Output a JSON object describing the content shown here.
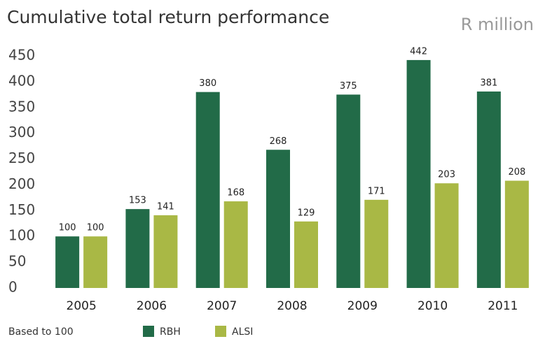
{
  "chart_data": {
    "type": "bar",
    "title": "Cumulative total return performance",
    "subtitle": "R million",
    "note": "Based to 100",
    "categories": [
      "2005",
      "2006",
      "2007",
      "2008",
      "2009",
      "2010",
      "2011"
    ],
    "series": [
      {
        "name": "RBH",
        "color": "#226b48",
        "values": [
          100,
          153,
          380,
          268,
          375,
          442,
          381
        ]
      },
      {
        "name": "ALSI",
        "color": "#a9b845",
        "values": [
          100,
          141,
          168,
          129,
          171,
          203,
          208
        ]
      }
    ],
    "ylim": [
      0,
      450
    ],
    "yticks": [
      0,
      50,
      100,
      150,
      200,
      250,
      300,
      350,
      400,
      450
    ],
    "grid": false
  }
}
